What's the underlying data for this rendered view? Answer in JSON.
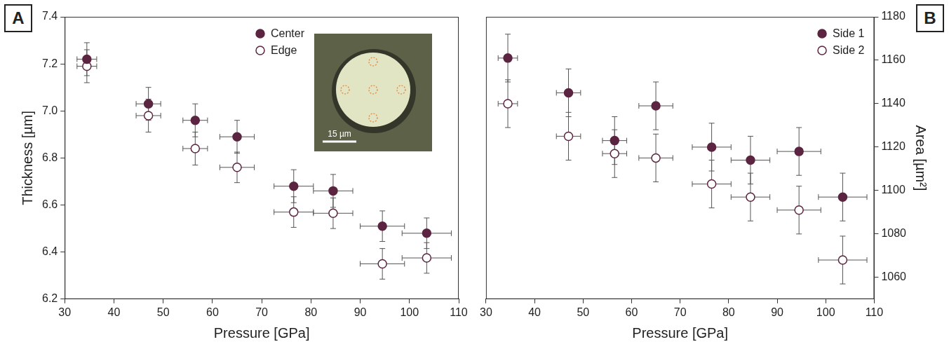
{
  "chart_data": [
    {
      "type": "scatter",
      "panel": "A",
      "x_label": "Pressure [GPa]",
      "y_label": "Thickness [µm]",
      "xlim": [
        30,
        110
      ],
      "xticks": [
        30,
        40,
        50,
        60,
        70,
        80,
        90,
        100,
        110
      ],
      "ylim": [
        6.2,
        7.4
      ],
      "yticks": [
        6.2,
        6.4,
        6.6,
        6.8,
        {
          "value": 7,
          "label": "7.0"
        },
        7.2,
        7.4
      ],
      "grid": false,
      "legend": "upper right",
      "inset": {
        "scale_bar_label": "15 µm"
      },
      "series": [
        {
          "name": "Center",
          "color": "#5b2440",
          "marker": "circle",
          "x": [
            34.5,
            47,
            56.5,
            65,
            76.5,
            84.5,
            94.5,
            103.5
          ],
          "values": [
            7.22,
            7.03,
            6.96,
            6.89,
            6.68,
            6.66,
            6.51,
            6.48
          ],
          "x_errors": [
            2,
            2.5,
            2.5,
            3.5,
            4,
            4,
            4.5,
            5
          ],
          "y_errors": [
            0.07,
            0.07,
            0.07,
            0.07,
            0.07,
            0.07,
            0.065,
            0.065
          ]
        },
        {
          "name": "Edge",
          "color": "#5b2440",
          "marker": "open_circle",
          "x": [
            34.5,
            47,
            56.5,
            65,
            76.5,
            84.5,
            94.5,
            103.5
          ],
          "values": [
            7.19,
            6.98,
            6.84,
            6.76,
            6.57,
            6.565,
            6.35,
            6.375
          ],
          "x_errors": [
            2,
            2.5,
            2.5,
            3.5,
            4,
            4,
            4.5,
            5
          ],
          "y_errors": [
            0.07,
            0.07,
            0.07,
            0.065,
            0.065,
            0.065,
            0.065,
            0.065
          ]
        }
      ]
    },
    {
      "type": "scatter",
      "panel": "B",
      "x_label": "Pressure [GPa]",
      "y_label": "Area [µm²]",
      "xlim": [
        30,
        110
      ],
      "xticks": [
        30,
        40,
        50,
        60,
        70,
        80,
        90,
        100,
        110
      ],
      "y2lim": [
        1050,
        1180
      ],
      "y2ticks": [
        1060,
        1080,
        1100,
        1120,
        1140,
        1160,
        1180
      ],
      "grid": false,
      "legend": "upper right",
      "series": [
        {
          "name": "Side 1",
          "color": "#5b2440",
          "marker": "circle",
          "axis": "y2",
          "x": [
            34.5,
            47,
            56.5,
            65,
            76.5,
            84.5,
            94.5,
            103.5
          ],
          "values": [
            1161,
            1145,
            1123,
            1139,
            1120,
            1114,
            1118,
            1097
          ],
          "x_errors": [
            2,
            2.5,
            2.5,
            3.5,
            4,
            4,
            4.5,
            5
          ],
          "y_errors": [
            11,
            11,
            11,
            11,
            11,
            11,
            11,
            11
          ]
        },
        {
          "name": "Side 2",
          "color": "#5b2440",
          "marker": "open_circle",
          "axis": "y2",
          "x": [
            34.5,
            47,
            56.5,
            65,
            76.5,
            84.5,
            94.5,
            103.5
          ],
          "values": [
            1140,
            1125,
            1117,
            1115,
            1103,
            1097,
            1091,
            1068
          ],
          "x_errors": [
            2,
            2.5,
            2.5,
            3.5,
            4,
            4,
            4.5,
            5
          ],
          "y_errors": [
            11,
            11,
            11,
            11,
            11,
            11,
            11,
            11
          ]
        }
      ]
    }
  ]
}
